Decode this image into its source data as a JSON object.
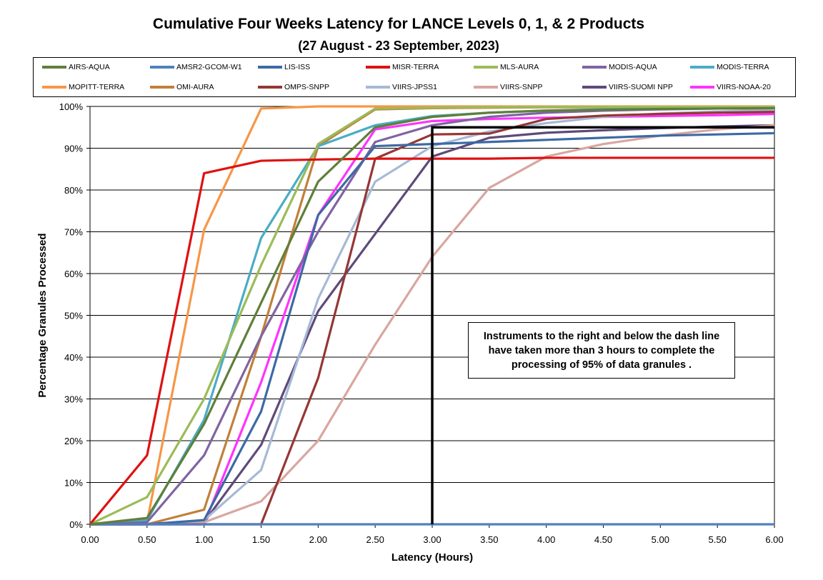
{
  "title": "Cumulative Four Weeks Latency  for LANCE Levels 0, 1, & 2 Products",
  "subtitle": "(27  August   -  23  September,  2023)",
  "annotation": "Instruments to the right and below the dash line have taken more than 3 hours to complete the processing of 95% of data granules .",
  "chart_data": {
    "type": "line",
    "xlabel": "Latency (Hours)",
    "ylabel": "Percentage Granules Processed",
    "x": [
      0,
      0.5,
      1,
      1.5,
      2,
      2.5,
      3,
      3.5,
      4,
      4.5,
      5,
      5.5,
      6
    ],
    "x_tick_labels": [
      "0.00",
      "0.50",
      "1.00",
      "1.50",
      "2.00",
      "2.50",
      "3.00",
      "3.50",
      "4.00",
      "4.50",
      "5.00",
      "5.50",
      "6.00"
    ],
    "y_tick_labels": [
      "0%",
      "10%",
      "20%",
      "30%",
      "40%",
      "50%",
      "60%",
      "70%",
      "80%",
      "90%",
      "100%"
    ],
    "xlim": [
      0,
      6
    ],
    "ylim": [
      0,
      100
    ],
    "grid": "horizontal",
    "legend_position": "top",
    "threshold_line": {
      "x": 3,
      "y": 95
    },
    "series": [
      {
        "name": "AIRS-AQUA",
        "color": "#5f7f3a",
        "values": [
          0,
          1.5,
          24,
          53,
          82,
          95,
          97.5,
          98.5,
          99,
          99.2,
          99.4,
          99.5,
          99.6
        ]
      },
      {
        "name": "AMSR2-GCOM-W1",
        "color": "#4f81bd",
        "values": [
          0,
          0,
          0,
          0,
          0,
          0,
          0,
          0,
          0,
          0,
          0,
          0,
          0
        ]
      },
      {
        "name": "LIS-ISS",
        "color": "#3c6aa5",
        "values": [
          0,
          0,
          1,
          27,
          74,
          90.5,
          91,
          91.5,
          92,
          92.5,
          93,
          93.3,
          93.6
        ]
      },
      {
        "name": "MISR-TERRA",
        "color": "#e01010",
        "values": [
          0,
          16.5,
          84,
          87,
          87.3,
          87.5,
          87.5,
          87.5,
          87.7,
          87.7,
          87.7,
          87.7,
          87.7
        ]
      },
      {
        "name": "MLS-AURA",
        "color": "#9bbb59",
        "values": [
          0,
          6.5,
          30,
          62,
          91,
          99.5,
          99.7,
          99.8,
          99.9,
          99.9,
          99.9,
          99.9,
          99.9
        ]
      },
      {
        "name": "MODIS-AQUA",
        "color": "#8064a2",
        "values": [
          0,
          0.5,
          16.5,
          45,
          70,
          91.5,
          95.5,
          97.5,
          98.5,
          99,
          99.3,
          99.5,
          99.6
        ]
      },
      {
        "name": "MODIS-TERRA",
        "color": "#4bacc6",
        "values": [
          0,
          1,
          25,
          68.5,
          90.5,
          95.5,
          97.7,
          98.5,
          99,
          99.3,
          99.5,
          99.6,
          99.7
        ]
      },
      {
        "name": "MOPITT-TERRA",
        "color": "#f79646",
        "values": [
          0,
          0.5,
          70.5,
          99.5,
          100,
          100,
          100,
          100,
          100,
          100,
          100,
          100,
          100
        ]
      },
      {
        "name": "OMI-AURA",
        "color": "#c0803a",
        "values": [
          0,
          0,
          3.5,
          45,
          90.5,
          99.3,
          99.6,
          99.7,
          99.8,
          99.8,
          99.9,
          99.9,
          99.9
        ]
      },
      {
        "name": "OMPS-SNPP",
        "color": "#953735",
        "values": [
          0,
          0,
          0,
          0,
          35,
          87.5,
          93.3,
          93.5,
          97,
          97.8,
          98.2,
          98.5,
          98.7
        ]
      },
      {
        "name": "VIIRS-JPSS1",
        "color": "#a6b9d6",
        "values": [
          0,
          0,
          1,
          13,
          54,
          82,
          90.5,
          94,
          96,
          97.5,
          98.3,
          98.8,
          99.1
        ]
      },
      {
        "name": "VIIRS-SNPP",
        "color": "#d9a6a0",
        "values": [
          0,
          0,
          0.5,
          5.5,
          20,
          43,
          64,
          80.5,
          88,
          91,
          93,
          94.5,
          95.5
        ]
      },
      {
        "name": "VIIRS-SUOMI NPP",
        "color": "#5f4a7a",
        "values": [
          0,
          0,
          0.5,
          19,
          51,
          69.5,
          88,
          92.5,
          93.7,
          94.3,
          94.8,
          95.2,
          95.5
        ]
      },
      {
        "name": "VIIRS-NOAA-20",
        "color": "#ff33ff",
        "values": [
          0,
          0,
          0,
          34,
          74,
          94.5,
          96.5,
          97,
          97.3,
          97.5,
          97.7,
          97.9,
          98.2
        ]
      }
    ]
  }
}
